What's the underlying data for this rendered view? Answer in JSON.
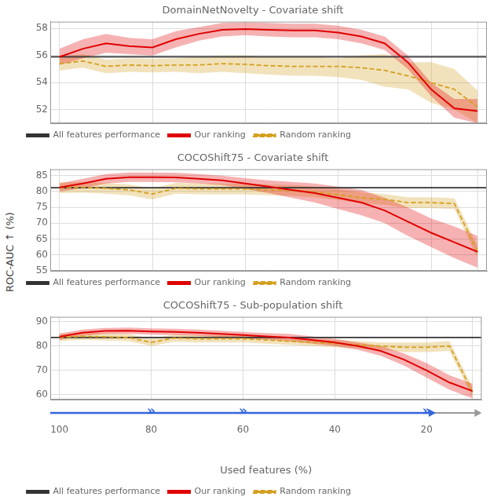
{
  "chart_data": [
    {
      "type": "line",
      "title": "DomainNetNovelty - Covariate shift",
      "x": [
        100,
        95,
        90,
        85,
        80,
        75,
        70,
        65,
        60,
        55,
        50,
        45,
        40,
        35,
        30,
        25,
        20,
        15,
        10
      ],
      "baseline": {
        "name": "All features performance",
        "color": "#333333",
        "value": 55.9
      },
      "series": [
        {
          "name": "Our ranking",
          "color": "#e00000",
          "line_style": "solid",
          "values": [
            55.9,
            56.5,
            56.9,
            56.7,
            56.6,
            57.2,
            57.6,
            57.9,
            57.95,
            57.9,
            57.85,
            57.85,
            57.7,
            57.4,
            56.9,
            55.5,
            53.5,
            52.1,
            51.9
          ],
          "lo": [
            55.3,
            55.8,
            56.2,
            56.1,
            56.0,
            56.6,
            57.1,
            57.4,
            57.5,
            57.4,
            57.35,
            57.35,
            57.2,
            56.9,
            56.4,
            55.0,
            53.0,
            51.4,
            51.0
          ],
          "hi": [
            56.5,
            57.2,
            57.6,
            57.3,
            57.2,
            57.8,
            58.1,
            58.4,
            58.45,
            58.4,
            58.35,
            58.35,
            58.2,
            57.9,
            57.4,
            56.0,
            54.0,
            52.8,
            52.8
          ]
        },
        {
          "name": "Random ranking",
          "color": "#d4a020",
          "line_style": "dashed",
          "values": [
            55.4,
            55.6,
            55.2,
            55.3,
            55.25,
            55.3,
            55.3,
            55.4,
            55.35,
            55.25,
            55.2,
            55.2,
            55.2,
            55.1,
            54.9,
            54.5,
            54.0,
            53.5,
            52.2
          ],
          "lo": [
            54.9,
            55.1,
            54.7,
            54.8,
            54.75,
            54.8,
            54.7,
            54.8,
            54.7,
            54.6,
            54.5,
            54.5,
            54.4,
            54.2,
            53.7,
            53.5,
            52.5,
            52.0,
            51.0
          ],
          "hi": [
            55.9,
            56.1,
            55.7,
            55.8,
            55.75,
            55.8,
            55.9,
            56.0,
            56.0,
            55.9,
            55.9,
            55.9,
            55.8,
            56.0,
            56.1,
            55.5,
            55.5,
            55.0,
            53.4
          ]
        }
      ],
      "xlim": [
        102,
        8
      ],
      "xticks": [
        100,
        80,
        60,
        40,
        20,
        10
      ],
      "ylim": [
        51,
        58.5
      ],
      "yticks": [
        52,
        54,
        56,
        58
      ],
      "grid": true,
      "legend": "lower left",
      "tick_labels": "y"
    },
    {
      "type": "line",
      "title": "COCOShift75 - Covariate shift",
      "ylabel": "ROC-AUC ↑ (%)",
      "x": [
        100,
        95,
        90,
        85,
        80,
        75,
        70,
        65,
        60,
        55,
        50,
        45,
        40,
        35,
        30,
        25,
        20,
        15,
        10
      ],
      "baseline": {
        "name": "All features performance",
        "color": "#333333",
        "value": 81.2
      },
      "series": [
        {
          "name": "Our ranking",
          "color": "#e00000",
          "line_style": "solid",
          "values": [
            81.3,
            82.5,
            84.0,
            84.5,
            84.5,
            84.4,
            84.0,
            83.5,
            82.5,
            81.5,
            80.5,
            79.5,
            78.0,
            76.5,
            74.0,
            70.5,
            67.0,
            64.0,
            61.0
          ],
          "lo": [
            80.0,
            81.0,
            82.5,
            83.0,
            83.0,
            82.9,
            82.5,
            82.0,
            80.8,
            79.5,
            78.0,
            76.5,
            74.5,
            72.5,
            70.0,
            66.0,
            62.5,
            59.0,
            56.0
          ],
          "hi": [
            82.6,
            84.0,
            85.5,
            86.0,
            86.0,
            85.9,
            85.5,
            85.0,
            84.2,
            83.5,
            83.0,
            82.5,
            81.5,
            80.5,
            78.0,
            75.0,
            71.5,
            69.0,
            66.0
          ]
        },
        {
          "name": "Random ranking",
          "color": "#d4a020",
          "line_style": "dashed",
          "values": [
            81.2,
            81.3,
            81.0,
            80.5,
            79.2,
            81.0,
            80.8,
            80.8,
            80.8,
            80.5,
            80.3,
            79.8,
            79.0,
            78.0,
            77.5,
            76.5,
            76.5,
            76.2,
            61.0
          ],
          "lo": [
            79.5,
            79.6,
            79.3,
            78.8,
            77.5,
            79.3,
            79.1,
            79.1,
            79.1,
            78.8,
            78.6,
            78.1,
            77.3,
            76.3,
            75.8,
            74.8,
            74.8,
            74.5,
            59.0
          ],
          "hi": [
            82.9,
            83.0,
            82.7,
            82.2,
            80.9,
            82.7,
            82.5,
            82.5,
            82.5,
            82.2,
            82.0,
            81.5,
            80.7,
            79.7,
            79.2,
            78.2,
            78.2,
            77.9,
            63.0
          ]
        }
      ],
      "xlim": [
        102,
        8
      ],
      "xticks": [
        100,
        80,
        60,
        40,
        20,
        10
      ],
      "ylim": [
        55,
        87
      ],
      "yticks": [
        55,
        60,
        65,
        70,
        75,
        80,
        85
      ],
      "grid": true,
      "legend": "lower left",
      "tick_labels": "y"
    },
    {
      "type": "line",
      "title": "COCOShift75 - Sub-population shift",
      "xlabel": "Used features (%)",
      "x": [
        100,
        95,
        90,
        85,
        80,
        75,
        70,
        65,
        60,
        55,
        50,
        45,
        40,
        35,
        30,
        25,
        20,
        15,
        10
      ],
      "baseline": {
        "name": "All features performance",
        "color": "#333333",
        "value": 83.5
      },
      "series": [
        {
          "name": "Our ranking",
          "color": "#e00000",
          "line_style": "solid",
          "values": [
            83.8,
            85.5,
            86.2,
            86.3,
            86.0,
            85.8,
            85.5,
            85.0,
            84.5,
            84.0,
            83.5,
            82.5,
            81.5,
            80.0,
            78.0,
            74.5,
            70.0,
            65.0,
            61.5
          ],
          "lo": [
            82.5,
            84.2,
            85.0,
            85.0,
            84.7,
            84.5,
            84.2,
            83.7,
            83.2,
            82.7,
            82.0,
            81.0,
            80.0,
            78.5,
            76.0,
            72.0,
            67.0,
            62.0,
            58.5
          ],
          "hi": [
            85.1,
            86.8,
            87.4,
            87.6,
            87.3,
            87.1,
            86.8,
            86.3,
            85.8,
            85.3,
            85.0,
            84.0,
            83.0,
            81.5,
            80.0,
            77.0,
            73.0,
            68.0,
            64.5
          ]
        },
        {
          "name": "Random ranking",
          "color": "#d4a020",
          "line_style": "dashed",
          "values": [
            83.5,
            84.0,
            83.8,
            83.5,
            81.5,
            83.3,
            83.0,
            83.0,
            83.0,
            82.5,
            82.0,
            81.5,
            81.0,
            80.5,
            80.0,
            79.5,
            79.5,
            80.0,
            61.0
          ],
          "lo": [
            82.0,
            82.5,
            82.3,
            82.0,
            80.0,
            81.8,
            81.5,
            81.5,
            81.5,
            81.0,
            80.5,
            80.0,
            79.5,
            79.0,
            78.5,
            77.5,
            77.5,
            78.0,
            59.0
          ],
          "hi": [
            85.0,
            85.5,
            85.3,
            85.0,
            83.0,
            84.8,
            84.5,
            84.5,
            84.5,
            84.0,
            83.5,
            83.0,
            82.5,
            82.0,
            81.5,
            81.5,
            81.5,
            82.0,
            63.0
          ]
        }
      ],
      "xlim": [
        102,
        8
      ],
      "xticks": [
        100,
        80,
        60,
        40,
        20,
        {
          "value": 10,
          "label": null
        }
      ],
      "ylim": [
        58,
        92
      ],
      "yticks": [
        60,
        70,
        80,
        90
      ],
      "arrows": [
        {
          "from": 102,
          "to": 8,
          "color": "#999999"
        },
        {
          "from": 102,
          "to": 18,
          "color": "#3366dd"
        }
      ],
      "annotations": [
        {
          "text": "»",
          "x": 80,
          "color": "#3366dd"
        },
        {
          "text": "»",
          "x": 60,
          "color": "#3366dd"
        },
        {
          "text": "»",
          "x": 20,
          "color": "#3366dd"
        }
      ],
      "grid": true,
      "legend": "lower left",
      "tick_labels": true
    }
  ]
}
